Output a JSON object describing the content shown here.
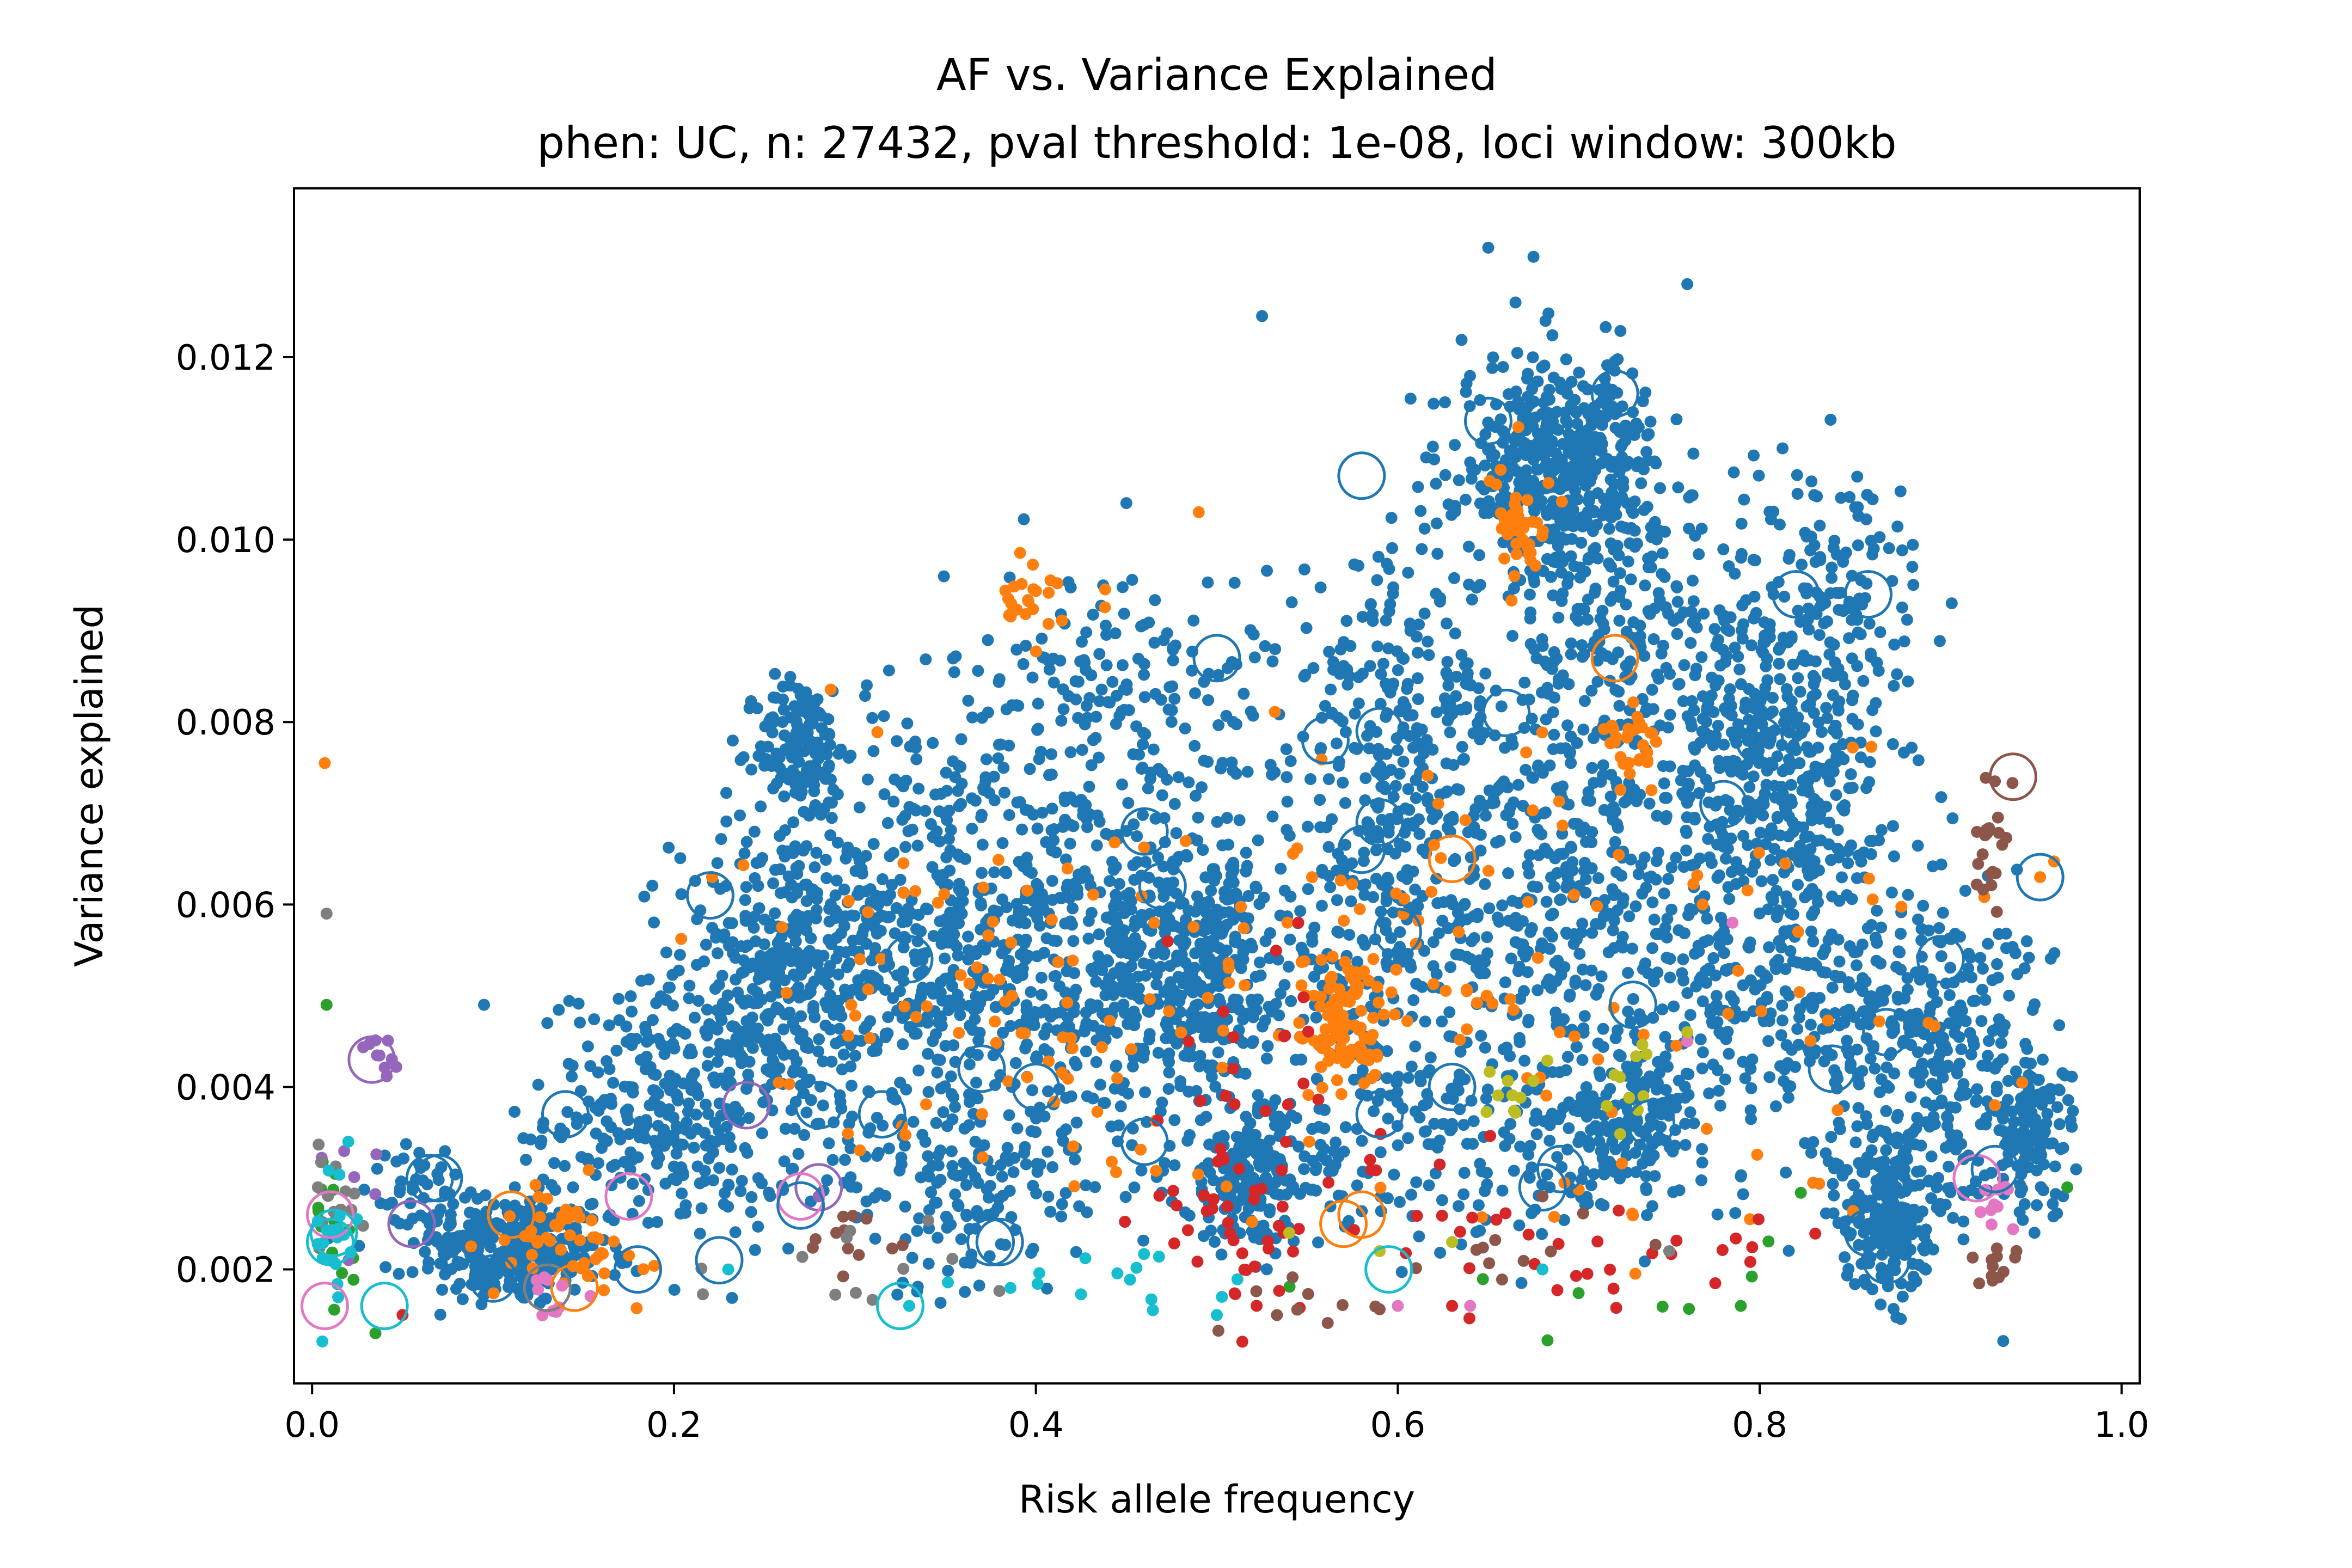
{
  "chart_data": {
    "type": "scatter",
    "title": "AF vs. Variance Explained",
    "subtitle": "phen: UC, n: 27432, pval threshold: 1e-08, loci window: 300kb",
    "xlabel": "Risk allele frequency",
    "ylabel": "Variance explained",
    "xlim": [
      -0.01,
      1.01
    ],
    "ylim": [
      0.00075,
      0.01385
    ],
    "x_ticks": [
      {
        "value": 0.0,
        "label": "0.0"
      },
      {
        "value": 0.2,
        "label": "0.2"
      },
      {
        "value": 0.4,
        "label": "0.4"
      },
      {
        "value": 0.6,
        "label": "0.6"
      },
      {
        "value": 0.8,
        "label": "0.8"
      },
      {
        "value": 1.0,
        "label": "1.0"
      }
    ],
    "y_ticks": [
      {
        "value": 0.002,
        "label": "0.002"
      },
      {
        "value": 0.004,
        "label": "0.004"
      },
      {
        "value": 0.006,
        "label": "0.006"
      },
      {
        "value": 0.008,
        "label": "0.008"
      },
      {
        "value": 0.01,
        "label": "0.010"
      },
      {
        "value": 0.012,
        "label": "0.012"
      }
    ],
    "grid": false,
    "legend": "none",
    "series": [
      {
        "color": "#1f77b4",
        "marker": "dot",
        "clusters": [
          {
            "x": 0.11,
            "y": 0.0022,
            "sx": 0.025,
            "sy": 0.0003,
            "n": 260
          },
          {
            "x": 0.2,
            "y": 0.0037,
            "sx": 0.035,
            "sy": 0.0007,
            "n": 320
          },
          {
            "x": 0.26,
            "y": 0.0053,
            "sx": 0.03,
            "sy": 0.0008,
            "n": 320
          },
          {
            "x": 0.27,
            "y": 0.0077,
            "sx": 0.012,
            "sy": 0.0004,
            "n": 150
          },
          {
            "x": 0.33,
            "y": 0.0058,
            "sx": 0.04,
            "sy": 0.0012,
            "n": 320
          },
          {
            "x": 0.42,
            "y": 0.0055,
            "sx": 0.05,
            "sy": 0.0011,
            "n": 520
          },
          {
            "x": 0.45,
            "y": 0.0083,
            "sx": 0.05,
            "sy": 0.0007,
            "n": 180
          },
          {
            "x": 0.49,
            "y": 0.0052,
            "sx": 0.03,
            "sy": 0.0008,
            "n": 320
          },
          {
            "x": 0.52,
            "y": 0.003,
            "sx": 0.02,
            "sy": 0.0004,
            "n": 180
          },
          {
            "x": 0.6,
            "y": 0.006,
            "sx": 0.04,
            "sy": 0.0012,
            "n": 320
          },
          {
            "x": 0.6,
            "y": 0.0082,
            "sx": 0.03,
            "sy": 0.0008,
            "n": 150
          },
          {
            "x": 0.69,
            "y": 0.0108,
            "sx": 0.028,
            "sy": 0.0006,
            "n": 480
          },
          {
            "x": 0.7,
            "y": 0.006,
            "sx": 0.04,
            "sy": 0.0013,
            "n": 380
          },
          {
            "x": 0.73,
            "y": 0.0088,
            "sx": 0.04,
            "sy": 0.0008,
            "n": 200
          },
          {
            "x": 0.73,
            "y": 0.0036,
            "sx": 0.02,
            "sy": 0.0004,
            "n": 150
          },
          {
            "x": 0.81,
            "y": 0.0075,
            "sx": 0.03,
            "sy": 0.0009,
            "n": 420
          },
          {
            "x": 0.82,
            "y": 0.005,
            "sx": 0.04,
            "sy": 0.001,
            "n": 260
          },
          {
            "x": 0.84,
            "y": 0.0095,
            "sx": 0.03,
            "sy": 0.0008,
            "n": 120
          },
          {
            "x": 0.87,
            "y": 0.0026,
            "sx": 0.012,
            "sy": 0.0004,
            "n": 200
          },
          {
            "x": 0.9,
            "y": 0.0043,
            "sx": 0.035,
            "sy": 0.0009,
            "n": 320
          },
          {
            "x": 0.95,
            "y": 0.0035,
            "sx": 0.012,
            "sy": 0.0004,
            "n": 100
          },
          {
            "x": 0.36,
            "y": 0.0029,
            "sx": 0.04,
            "sy": 0.0006,
            "n": 150
          },
          {
            "x": 0.64,
            "y": 0.0034,
            "sx": 0.05,
            "sy": 0.0007,
            "n": 150
          },
          {
            "x": 0.07,
            "y": 0.0028,
            "sx": 0.02,
            "sy": 0.0003,
            "n": 60
          }
        ],
        "points": [
          [
            0.525,
            0.01245
          ],
          [
            0.65,
            0.0132
          ],
          [
            0.675,
            0.0131
          ],
          [
            0.76,
            0.0128
          ],
          [
            0.45,
            0.0104
          ],
          [
            0.095,
            0.0049
          ],
          [
            0.13,
            0.0047
          ]
        ]
      },
      {
        "color": "#ff7f0e",
        "marker": "dot",
        "clusters": [
          {
            "x": 0.57,
            "y": 0.0047,
            "sx": 0.012,
            "sy": 0.0004,
            "n": 90
          },
          {
            "x": 0.67,
            "y": 0.0101,
            "sx": 0.008,
            "sy": 0.0003,
            "n": 40
          },
          {
            "x": 0.73,
            "y": 0.0077,
            "sx": 0.008,
            "sy": 0.0002,
            "n": 30
          },
          {
            "x": 0.4,
            "y": 0.0093,
            "sx": 0.012,
            "sy": 0.0003,
            "n": 25
          },
          {
            "x": 0.14,
            "y": 0.0023,
            "sx": 0.02,
            "sy": 0.0003,
            "n": 50
          },
          {
            "x": 0.38,
            "y": 0.005,
            "sx": 0.08,
            "sy": 0.001,
            "n": 90
          },
          {
            "x": 0.72,
            "y": 0.005,
            "sx": 0.12,
            "sy": 0.0015,
            "n": 80
          },
          {
            "x": 0.6,
            "y": 0.0058,
            "sx": 0.06,
            "sy": 0.0012,
            "n": 40
          }
        ],
        "points": [
          [
            0.007,
            0.00755
          ],
          [
            0.49,
            0.0103
          ],
          [
            0.955,
            0.0063
          ],
          [
            0.93,
            0.0038
          ]
        ]
      },
      {
        "color": "#2ca02c",
        "marker": "dot",
        "clusters": [
          {
            "x": 0.01,
            "y": 0.0025,
            "sx": 0.006,
            "sy": 0.0006,
            "n": 18
          },
          {
            "x": 0.7,
            "y": 0.002,
            "sx": 0.1,
            "sy": 0.0003,
            "n": 10
          }
        ],
        "points": [
          [
            0.008,
            0.0049
          ],
          [
            0.97,
            0.0029
          ],
          [
            0.035,
            0.0013
          ]
        ]
      },
      {
        "color": "#d62728",
        "marker": "dot",
        "clusters": [
          {
            "x": 0.5,
            "y": 0.0025,
            "sx": 0.03,
            "sy": 0.0005,
            "n": 30
          },
          {
            "x": 0.57,
            "y": 0.0023,
            "sx": 0.05,
            "sy": 0.0006,
            "n": 28
          },
          {
            "x": 0.74,
            "y": 0.0022,
            "sx": 0.06,
            "sy": 0.0003,
            "n": 25
          },
          {
            "x": 0.52,
            "y": 0.0042,
            "sx": 0.03,
            "sy": 0.0006,
            "n": 15
          }
        ],
        "points": [
          [
            0.545,
            0.0058
          ],
          [
            0.63,
            0.0016
          ],
          [
            0.05,
            0.0015
          ]
        ]
      },
      {
        "color": "#9467bd",
        "marker": "dot",
        "clusters": [
          {
            "x": 0.035,
            "y": 0.0043,
            "sx": 0.006,
            "sy": 0.00015,
            "n": 10
          },
          {
            "x": 0.02,
            "y": 0.0028,
            "sx": 0.015,
            "sy": 0.0003,
            "n": 8
          }
        ],
        "points": [
          [
            0.28,
            0.0028
          ]
        ]
      },
      {
        "color": "#8c564b",
        "marker": "dot",
        "clusters": [
          {
            "x": 0.93,
            "y": 0.0065,
            "sx": 0.006,
            "sy": 0.0003,
            "n": 20
          },
          {
            "x": 0.93,
            "y": 0.002,
            "sx": 0.006,
            "sy": 0.00015,
            "n": 12
          },
          {
            "x": 0.55,
            "y": 0.0016,
            "sx": 0.03,
            "sy": 0.00015,
            "n": 10
          },
          {
            "x": 0.3,
            "y": 0.0023,
            "sx": 0.015,
            "sy": 0.0002,
            "n": 12
          },
          {
            "x": 0.67,
            "y": 0.0022,
            "sx": 0.03,
            "sy": 0.0003,
            "n": 10
          }
        ],
        "points": [
          [
            0.93,
            0.00735
          ],
          [
            0.68,
            0.0028
          ]
        ]
      },
      {
        "color": "#e377c2",
        "marker": "dot",
        "clusters": [
          {
            "x": 0.93,
            "y": 0.0028,
            "sx": 0.005,
            "sy": 0.0002,
            "n": 10
          },
          {
            "x": 0.13,
            "y": 0.0017,
            "sx": 0.02,
            "sy": 0.0002,
            "n": 10
          }
        ],
        "points": [
          [
            0.785,
            0.0058
          ],
          [
            0.76,
            0.0045
          ],
          [
            0.6,
            0.0016
          ],
          [
            0.64,
            0.0016
          ]
        ]
      },
      {
        "color": "#7f7f7f",
        "marker": "dot",
        "clusters": [
          {
            "x": 0.012,
            "y": 0.0028,
            "sx": 0.008,
            "sy": 0.0004,
            "n": 16
          },
          {
            "x": 0.3,
            "y": 0.0021,
            "sx": 0.05,
            "sy": 0.0003,
            "n": 12
          }
        ],
        "points": [
          [
            0.008,
            0.0059
          ],
          [
            0.75,
            0.0022
          ]
        ]
      },
      {
        "color": "#bcbd22",
        "marker": "dot",
        "clusters": [
          {
            "x": 0.66,
            "y": 0.0039,
            "sx": 0.008,
            "sy": 0.0002,
            "n": 10
          },
          {
            "x": 0.73,
            "y": 0.0041,
            "sx": 0.008,
            "sy": 0.0002,
            "n": 10
          }
        ],
        "points": [
          [
            0.63,
            0.0023
          ],
          [
            0.54,
            0.0024
          ],
          [
            0.59,
            0.0022
          ],
          [
            0.76,
            0.0046
          ]
        ]
      },
      {
        "color": "#17becf",
        "marker": "dot",
        "clusters": [
          {
            "x": 0.01,
            "y": 0.0022,
            "sx": 0.006,
            "sy": 0.0004,
            "n": 20
          },
          {
            "x": 0.43,
            "y": 0.0019,
            "sx": 0.04,
            "sy": 0.0002,
            "n": 15
          }
        ],
        "points": [
          [
            0.5,
            0.0015
          ],
          [
            0.68,
            0.002
          ],
          [
            0.33,
            0.0016
          ],
          [
            0.23,
            0.002
          ],
          [
            0.02,
            0.0034
          ]
        ]
      }
    ],
    "circled_points": [
      {
        "x": 0.58,
        "y": 0.0107,
        "color": "#1f77b4"
      },
      {
        "x": 0.65,
        "y": 0.0113,
        "color": "#1f77b4"
      },
      {
        "x": 0.72,
        "y": 0.0116,
        "color": "#1f77b4"
      },
      {
        "x": 0.5,
        "y": 0.0087,
        "color": "#1f77b4"
      },
      {
        "x": 0.72,
        "y": 0.0087,
        "color": "#ff7f0e"
      },
      {
        "x": 0.82,
        "y": 0.0094,
        "color": "#1f77b4"
      },
      {
        "x": 0.86,
        "y": 0.0094,
        "color": "#1f77b4"
      },
      {
        "x": 0.22,
        "y": 0.0061,
        "color": "#1f77b4"
      },
      {
        "x": 0.56,
        "y": 0.0078,
        "color": "#1f77b4"
      },
      {
        "x": 0.59,
        "y": 0.0079,
        "color": "#1f77b4"
      },
      {
        "x": 0.66,
        "y": 0.0081,
        "color": "#1f77b4"
      },
      {
        "x": 0.63,
        "y": 0.0065,
        "color": "#ff7f0e"
      },
      {
        "x": 0.94,
        "y": 0.0074,
        "color": "#8c564b"
      },
      {
        "x": 0.955,
        "y": 0.0063,
        "color": "#1f77b4"
      },
      {
        "x": 0.46,
        "y": 0.0068,
        "color": "#1f77b4"
      },
      {
        "x": 0.58,
        "y": 0.0066,
        "color": "#1f77b4"
      },
      {
        "x": 0.59,
        "y": 0.0069,
        "color": "#1f77b4"
      },
      {
        "x": 0.78,
        "y": 0.0071,
        "color": "#1f77b4"
      },
      {
        "x": 0.8,
        "y": 0.0078,
        "color": "#1f77b4"
      },
      {
        "x": 0.33,
        "y": 0.0054,
        "color": "#1f77b4"
      },
      {
        "x": 0.37,
        "y": 0.0042,
        "color": "#1f77b4"
      },
      {
        "x": 0.4,
        "y": 0.004,
        "color": "#1f77b4"
      },
      {
        "x": 0.46,
        "y": 0.0034,
        "color": "#1f77b4"
      },
      {
        "x": 0.47,
        "y": 0.0062,
        "color": "#1f77b4"
      },
      {
        "x": 0.6,
        "y": 0.0057,
        "color": "#1f77b4"
      },
      {
        "x": 0.63,
        "y": 0.004,
        "color": "#1f77b4"
      },
      {
        "x": 0.59,
        "y": 0.0037,
        "color": "#1f77b4"
      },
      {
        "x": 0.73,
        "y": 0.0049,
        "color": "#1f77b4"
      },
      {
        "x": 0.74,
        "y": 0.0036,
        "color": "#1f77b4"
      },
      {
        "x": 0.87,
        "y": 0.0046,
        "color": "#1f77b4"
      },
      {
        "x": 0.84,
        "y": 0.0042,
        "color": "#1f77b4"
      },
      {
        "x": 0.86,
        "y": 0.0024,
        "color": "#1f77b4"
      },
      {
        "x": 0.87,
        "y": 0.0021,
        "color": "#1f77b4"
      },
      {
        "x": 0.92,
        "y": 0.003,
        "color": "#e377c2"
      },
      {
        "x": 0.93,
        "y": 0.0031,
        "color": "#1f77b4"
      },
      {
        "x": 0.69,
        "y": 0.0031,
        "color": "#1f77b4"
      },
      {
        "x": 0.68,
        "y": 0.0029,
        "color": "#1f77b4"
      },
      {
        "x": 0.57,
        "y": 0.0025,
        "color": "#ff7f0e"
      },
      {
        "x": 0.58,
        "y": 0.0026,
        "color": "#ff7f0e"
      },
      {
        "x": 0.595,
        "y": 0.002,
        "color": "#17becf"
      },
      {
        "x": 0.38,
        "y": 0.0023,
        "color": "#1f77b4"
      },
      {
        "x": 0.325,
        "y": 0.0016,
        "color": "#17becf"
      },
      {
        "x": 0.315,
        "y": 0.0037,
        "color": "#1f77b4"
      },
      {
        "x": 0.28,
        "y": 0.0038,
        "color": "#1f77b4"
      },
      {
        "x": 0.24,
        "y": 0.0038,
        "color": "#9467bd"
      },
      {
        "x": 0.28,
        "y": 0.0029,
        "color": "#9467bd"
      },
      {
        "x": 0.27,
        "y": 0.0028,
        "color": "#e377c2"
      },
      {
        "x": 0.27,
        "y": 0.0027,
        "color": "#1f77b4"
      },
      {
        "x": 0.14,
        "y": 0.0037,
        "color": "#1f77b4"
      },
      {
        "x": 0.175,
        "y": 0.0028,
        "color": "#e377c2"
      },
      {
        "x": 0.11,
        "y": 0.0026,
        "color": "#ff7f0e"
      },
      {
        "x": 0.13,
        "y": 0.0018,
        "color": "#7f7f7f"
      },
      {
        "x": 0.145,
        "y": 0.0018,
        "color": "#ff7f0e"
      },
      {
        "x": 0.1,
        "y": 0.0019,
        "color": "#1f77b4"
      },
      {
        "x": 0.18,
        "y": 0.002,
        "color": "#1f77b4"
      },
      {
        "x": 0.065,
        "y": 0.003,
        "color": "#1f77b4"
      },
      {
        "x": 0.07,
        "y": 0.003,
        "color": "#1f77b4"
      },
      {
        "x": 0.055,
        "y": 0.0025,
        "color": "#9467bd"
      },
      {
        "x": 0.033,
        "y": 0.0043,
        "color": "#9467bd"
      },
      {
        "x": 0.01,
        "y": 0.0026,
        "color": "#e377c2"
      },
      {
        "x": 0.012,
        "y": 0.0024,
        "color": "#17becf"
      },
      {
        "x": 0.01,
        "y": 0.0023,
        "color": "#17becf"
      },
      {
        "x": 0.007,
        "y": 0.0016,
        "color": "#e377c2"
      },
      {
        "x": 0.04,
        "y": 0.0016,
        "color": "#17becf"
      },
      {
        "x": 0.375,
        "y": 0.0023,
        "color": "#1f77b4"
      },
      {
        "x": 0.225,
        "y": 0.0021,
        "color": "#1f77b4"
      },
      {
        "x": 0.9,
        "y": 0.0054,
        "color": "#1f77b4"
      }
    ]
  }
}
